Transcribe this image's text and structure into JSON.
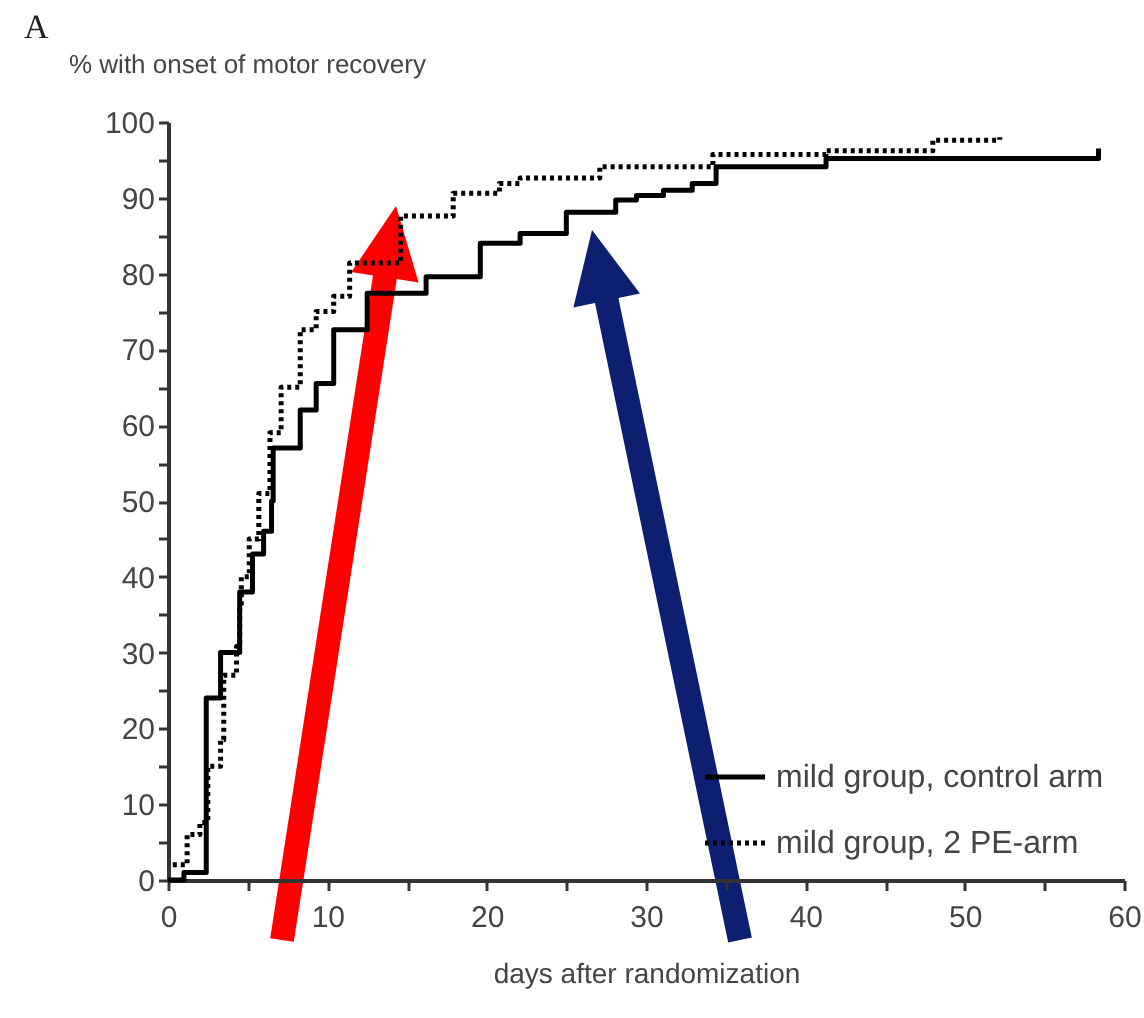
{
  "chart_data": {
    "type": "step",
    "xlabel": "days after randomization",
    "ylabel": "% with onset of motor recovery",
    "annotations": [
      "A"
    ],
    "series": [
      {
        "name": "mild group, control arm",
        "color": "#000000",
        "line_style": "solid",
        "x": [
          0,
          1,
          2.4,
          3.3,
          4.5,
          5.3,
          6.0,
          6.5,
          6.6,
          8.3,
          9.3,
          10.4,
          12.5,
          16.2,
          19.6,
          22.1,
          25,
          28.1,
          29.4,
          31.1,
          32.9,
          34.4,
          41.3,
          58.4,
          58.4
        ],
        "values": [
          0,
          1,
          24,
          30,
          38,
          43,
          46,
          50,
          57,
          62,
          65.5,
          72.6,
          77.4,
          79.6,
          84,
          85.3,
          88.1,
          89.7,
          90.3,
          91,
          91.9,
          94.1,
          95.2,
          95.2,
          96.5
        ]
      },
      {
        "name": "mild group, 2 PE-arm",
        "color": "#000000",
        "line_style": "dotted",
        "x": [
          0.3,
          1.2,
          2,
          2.5,
          3.3,
          3.5,
          4.3,
          4.5,
          4.6,
          5.1,
          5.7,
          6.4,
          7.1,
          8.3,
          9.3,
          10.4,
          11.4,
          14.6,
          17.9,
          20.8,
          22.1,
          27.1,
          34.2,
          41.3,
          48,
          52.2
        ],
        "values": [
          2,
          6,
          7.6,
          15,
          18.5,
          27,
          30.8,
          36,
          40,
          45,
          51,
          59,
          65,
          72.6,
          75,
          77,
          81.4,
          87.6,
          90.6,
          91.9,
          92.6,
          94.1,
          95.7,
          96.2,
          97.6,
          98
        ]
      }
    ],
    "xlim": [
      0,
      60
    ],
    "xticks": [
      0,
      {
        "value": 5,
        "label": null
      },
      10,
      {
        "value": 15,
        "label": null
      },
      20,
      {
        "value": 25,
        "label": null
      },
      30,
      {
        "value": 35,
        "label": null
      },
      40,
      {
        "value": 45,
        "label": null
      },
      50,
      {
        "value": 55,
        "label": null
      },
      60
    ],
    "ylim": [
      0,
      100
    ],
    "yticks": [
      0,
      {
        "value": 5,
        "label": null
      },
      10,
      {
        "value": 15,
        "label": null
      },
      20,
      {
        "value": 25,
        "label": null
      },
      30,
      {
        "value": 35,
        "label": null
      },
      40,
      {
        "value": 45,
        "label": null
      },
      50,
      {
        "value": 55,
        "label": null
      },
      60,
      {
        "value": 65,
        "label": null
      },
      70,
      {
        "value": 75,
        "label": null
      },
      80,
      {
        "value": 85,
        "label": null
      },
      90,
      {
        "value": 95,
        "label": null
      },
      100
    ],
    "grid": false,
    "legend": "bottom right",
    "marker": "none"
  }
}
